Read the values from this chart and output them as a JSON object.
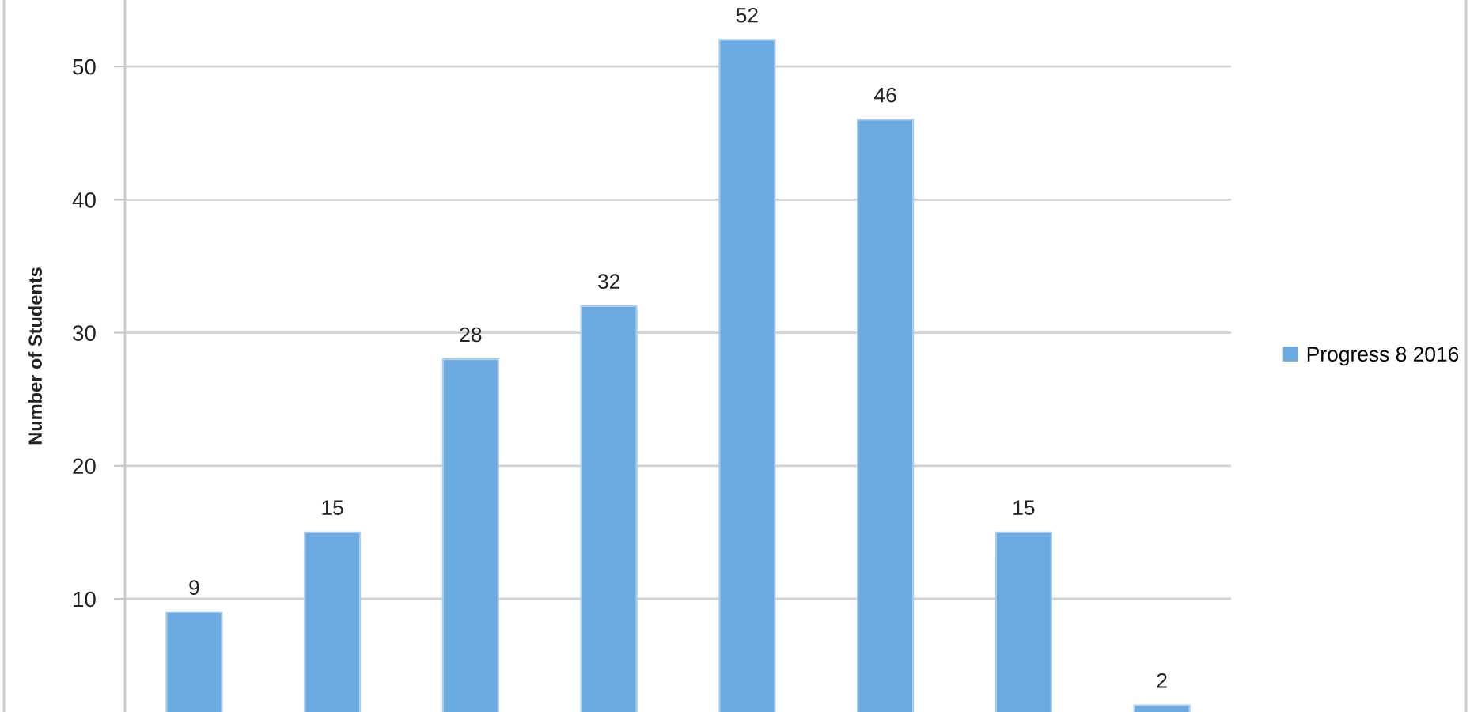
{
  "chart_data": {
    "type": "bar",
    "ylabel": "Number of Students",
    "categories": [
      null,
      null,
      null,
      null,
      null,
      null,
      null,
      null
    ],
    "series": [
      {
        "name": "Progress 8 2016",
        "color": "#6aaae0",
        "values": [
          9,
          15,
          28,
          32,
          52,
          46,
          15,
          2
        ]
      }
    ],
    "ylim": [
      1.5,
      55
    ],
    "yticks": [
      10,
      20,
      30,
      40,
      50
    ],
    "grid": "y",
    "legend": "right",
    "data_labels": true
  }
}
